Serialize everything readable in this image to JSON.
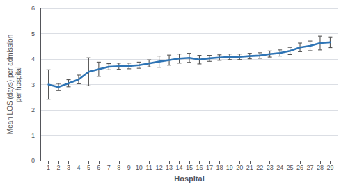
{
  "chart_data": {
    "type": "line",
    "x": [
      1,
      2,
      3,
      4,
      5,
      6,
      7,
      8,
      9,
      10,
      11,
      12,
      13,
      14,
      15,
      16,
      17,
      18,
      19,
      20,
      21,
      22,
      23,
      24,
      25,
      26,
      27,
      28,
      29
    ],
    "values": [
      3.0,
      2.9,
      3.05,
      3.2,
      3.5,
      3.6,
      3.7,
      3.72,
      3.73,
      3.76,
      3.83,
      3.9,
      3.96,
      4.02,
      4.05,
      3.98,
      4.03,
      4.06,
      4.09,
      4.09,
      4.12,
      4.14,
      4.2,
      4.24,
      4.32,
      4.46,
      4.52,
      4.63,
      4.66
    ],
    "ci_lower": [
      0.58,
      0.14,
      0.14,
      0.17,
      0.55,
      0.28,
      0.12,
      0.12,
      0.11,
      0.12,
      0.14,
      0.22,
      0.2,
      0.18,
      0.18,
      0.17,
      0.12,
      0.11,
      0.11,
      0.11,
      0.11,
      0.11,
      0.12,
      0.12,
      0.14,
      0.17,
      0.19,
      0.27,
      0.21
    ],
    "ci_upper": [
      0.58,
      0.14,
      0.14,
      0.17,
      0.55,
      0.28,
      0.12,
      0.12,
      0.11,
      0.12,
      0.14,
      0.22,
      0.2,
      0.18,
      0.18,
      0.17,
      0.12,
      0.11,
      0.11,
      0.11,
      0.11,
      0.11,
      0.12,
      0.12,
      0.14,
      0.17,
      0.19,
      0.27,
      0.21
    ],
    "color": "#2E74B5",
    "xlabel": "Hospital",
    "ylabel": "Mean LOS (days) per admission\nper hospital",
    "xlim": [
      0.2,
      29.8
    ],
    "xticks": [
      1,
      2,
      3,
      4,
      5,
      6,
      7,
      8,
      9,
      10,
      11,
      12,
      13,
      14,
      15,
      16,
      17,
      18,
      19,
      20,
      21,
      22,
      23,
      24,
      25,
      26,
      27,
      28,
      29
    ],
    "ylim": [
      0,
      6
    ],
    "yticks": [
      0,
      1,
      2,
      3,
      4,
      5,
      6
    ],
    "grid": true
  }
}
